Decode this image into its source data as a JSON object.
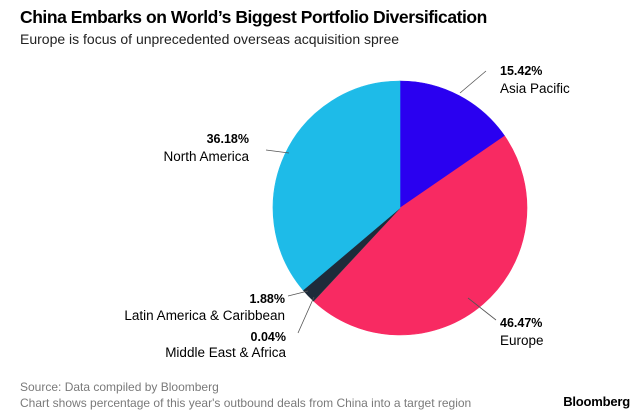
{
  "title": "China Embarks on World’s Biggest Portfolio Diversification",
  "subtitle": "Europe is focus of unprecedented overseas acquisition spree",
  "chart_data": {
    "type": "pie",
    "title": "China Embarks on World’s Biggest Portfolio Diversification",
    "subtitle": "Europe is focus of unprecedented overseas acquisition spree",
    "unit": "%",
    "slices": [
      {
        "label": "Asia Pacific",
        "value": 15.42,
        "display": "15.42%",
        "color": "#2a00f0"
      },
      {
        "label": "Europe",
        "value": 46.47,
        "display": "46.47%",
        "color": "#f82a62"
      },
      {
        "label": "Middle East & Africa",
        "value": 0.04,
        "display": "0.04%",
        "color": "#6a6a6a"
      },
      {
        "label": "Latin America & Caribbean",
        "value": 1.88,
        "display": "1.88%",
        "color": "#1e2b3a"
      },
      {
        "label": "North America",
        "value": 36.18,
        "display": "36.18%",
        "color": "#1ebbe8"
      }
    ]
  },
  "footer": {
    "source": "Source: Data compiled by Bloomberg",
    "note": "Chart shows percentage of this year's outbound deals from China into a target region",
    "brand": "Bloomberg"
  }
}
